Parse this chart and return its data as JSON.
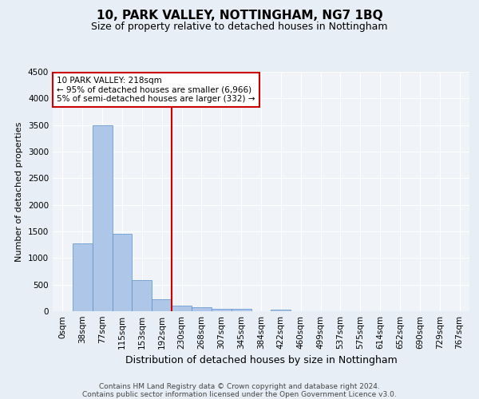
{
  "title1": "10, PARK VALLEY, NOTTINGHAM, NG7 1BQ",
  "title2": "Size of property relative to detached houses in Nottingham",
  "xlabel": "Distribution of detached houses by size in Nottingham",
  "ylabel": "Number of detached properties",
  "footer1": "Contains HM Land Registry data © Crown copyright and database right 2024.",
  "footer2": "Contains public sector information licensed under the Open Government Licence v3.0.",
  "bin_labels": [
    "0sqm",
    "38sqm",
    "77sqm",
    "115sqm",
    "153sqm",
    "192sqm",
    "230sqm",
    "268sqm",
    "307sqm",
    "345sqm",
    "384sqm",
    "422sqm",
    "460sqm",
    "499sqm",
    "537sqm",
    "575sqm",
    "614sqm",
    "652sqm",
    "690sqm",
    "729sqm",
    "767sqm"
  ],
  "bar_values": [
    5,
    1270,
    3500,
    1460,
    590,
    230,
    105,
    70,
    45,
    45,
    0,
    30,
    0,
    0,
    0,
    0,
    0,
    0,
    0,
    0,
    0
  ],
  "bar_color": "#aec6e8",
  "bar_edge_color": "#5b8fc9",
  "vline_x": 5.5,
  "vline_color": "#cc0000",
  "annotation_text": "10 PARK VALLEY: 218sqm\n← 95% of detached houses are smaller (6,966)\n5% of semi-detached houses are larger (332) →",
  "annotation_box_color": "#ffffff",
  "annotation_box_edge": "#cc0000",
  "ylim": [
    0,
    4500
  ],
  "yticks": [
    0,
    500,
    1000,
    1500,
    2000,
    2500,
    3000,
    3500,
    4000,
    4500
  ],
  "bg_color": "#e8eef5",
  "plot_bg_color": "#f0f4f9",
  "grid_color": "#ffffff",
  "title1_fontsize": 11,
  "title2_fontsize": 9,
  "xlabel_fontsize": 9,
  "ylabel_fontsize": 8,
  "tick_fontsize": 7.5,
  "annotation_fontsize": 7.5,
  "footer_fontsize": 6.5
}
